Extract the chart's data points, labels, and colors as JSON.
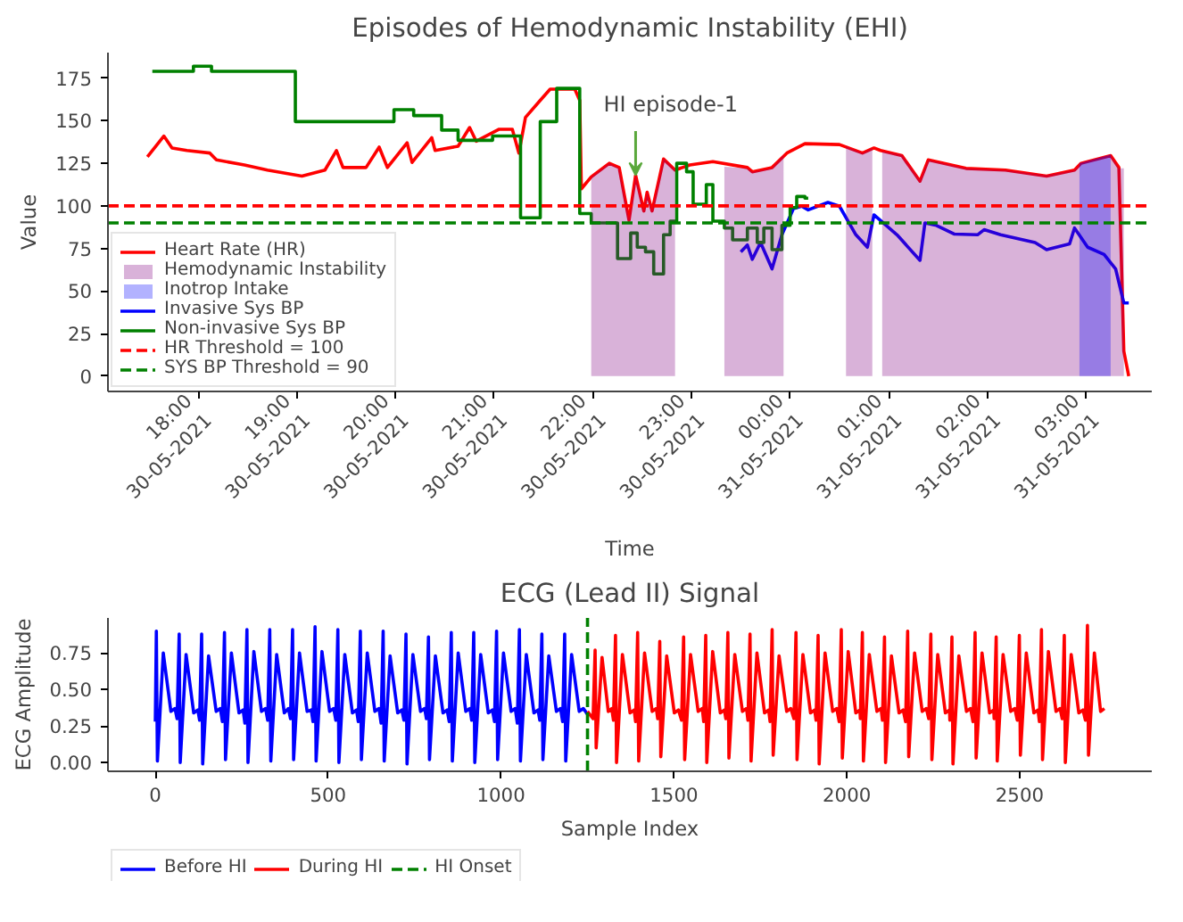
{
  "chart_data": [
    {
      "type": "line",
      "title": "Episodes of Hemodynamic Instability (EHI)",
      "xlabel": "Time",
      "ylabel": "Value",
      "xlim": [
        "2021-05-30T17:05",
        "2021-05-31T03:40"
      ],
      "ylim": [
        -9,
        190
      ],
      "xticks": [
        {
          "value": "2021-05-30T18:00",
          "label": "18:00\n30-05-2021"
        },
        {
          "value": "2021-05-30T19:00",
          "label": "19:00\n30-05-2021"
        },
        {
          "value": "2021-05-30T20:00",
          "label": "20:00\n30-05-2021"
        },
        {
          "value": "2021-05-30T21:00",
          "label": "21:00\n30-05-2021"
        },
        {
          "value": "2021-05-30T22:00",
          "label": "22:00\n30-05-2021"
        },
        {
          "value": "2021-05-30T23:00",
          "label": "23:00\n30-05-2021"
        },
        {
          "value": "2021-05-31T00:00",
          "label": "00:00\n31-05-2021"
        },
        {
          "value": "2021-05-31T01:00",
          "label": "01:00\n31-05-2021"
        },
        {
          "value": "2021-05-31T02:00",
          "label": "02:00\n31-05-2021"
        },
        {
          "value": "2021-05-31T03:00",
          "label": "03:00\n31-05-2021"
        }
      ],
      "yticks": [
        0,
        25,
        50,
        75,
        100,
        125,
        150,
        175
      ],
      "legend": "bottom left",
      "grid": false,
      "series": [
        {
          "name": "Heart Rate (HR)",
          "type": "line",
          "color": "#ff0000",
          "x": [
            "2021-05-30T17:29",
            "2021-05-30T17:39",
            "2021-05-30T17:44",
            "2021-05-30T17:53",
            "2021-05-30T18:07",
            "2021-05-30T18:11",
            "2021-05-30T18:28",
            "2021-05-30T18:42",
            "2021-05-30T19:03",
            "2021-05-30T19:17",
            "2021-05-30T19:24",
            "2021-05-30T19:28",
            "2021-05-30T19:42",
            "2021-05-30T19:50",
            "2021-05-30T19:55",
            "2021-05-30T20:07",
            "2021-05-30T20:10",
            "2021-05-30T20:22",
            "2021-05-30T20:24",
            "2021-05-30T20:38",
            "2021-05-30T20:45",
            "2021-05-30T20:49",
            "2021-05-30T21:03",
            "2021-05-30T21:11",
            "2021-05-30T21:15",
            "2021-05-30T21:19",
            "2021-05-30T21:28",
            "2021-05-30T21:34",
            "2021-05-30T21:49",
            "2021-05-30T21:52",
            "2021-05-30T21:53",
            "2021-05-30T21:59",
            "2021-05-30T22:10",
            "2021-05-30T22:16",
            "2021-05-30T22:22",
            "2021-05-30T22:26",
            "2021-05-30T22:31",
            "2021-05-30T22:33",
            "2021-05-30T22:36",
            "2021-05-30T22:43",
            "2021-05-30T22:50",
            "2021-05-30T22:59",
            "2021-05-30T23:13",
            "2021-05-30T23:34",
            "2021-05-30T23:37",
            "2021-05-30T23:49",
            "2021-05-30T23:58",
            "2021-05-31T00:09",
            "2021-05-31T00:30",
            "2021-05-31T00:44",
            "2021-05-31T00:51",
            "2021-05-31T00:55",
            "2021-05-31T01:08",
            "2021-05-31T01:19",
            "2021-05-31T01:24",
            "2021-05-31T01:47",
            "2021-05-31T02:11",
            "2021-05-31T02:36",
            "2021-05-31T02:53",
            "2021-05-31T02:57",
            "2021-05-31T03:15",
            "2021-05-31T03:20",
            "2021-05-31T03:23",
            "2021-05-31T03:26"
          ],
          "values": [
            128.8,
            141,
            134,
            132.5,
            131,
            127,
            124,
            121,
            117.5,
            121,
            132.5,
            122.5,
            122.5,
            134.5,
            122.5,
            137,
            125.5,
            140,
            132.5,
            135,
            146,
            138,
            145,
            145,
            131,
            152,
            162,
            168.5,
            168.5,
            162,
            110,
            117,
            125,
            122.5,
            91.5,
            118,
            97,
            108,
            97,
            127.5,
            121,
            124,
            126,
            122.5,
            120,
            122.5,
            131,
            136.5,
            136,
            131,
            134,
            132.5,
            129.5,
            114.5,
            127,
            122,
            121,
            117.5,
            121,
            125,
            129.5,
            122.5,
            14.7,
            0
          ]
        },
        {
          "name": "Hemodynamic Instability",
          "type": "area",
          "color": "#800080",
          "x": [
            "2021-05-30T21:59",
            "2021-05-30T22:10",
            "2021-05-30T22:16",
            "2021-05-30T22:22",
            "2021-05-30T22:26",
            "2021-05-30T22:31",
            "2021-05-30T22:33",
            "2021-05-30T22:36",
            "2021-05-30T22:43",
            "2021-05-30T22:50",
            "2021-05-30T23:05",
            "2021-05-30T23:20",
            "2021-05-30T23:34",
            "2021-05-30T23:37",
            "2021-05-30T23:49",
            "2021-05-30T23:56",
            "2021-05-31T00:15",
            "2021-05-31T00:34",
            "2021-05-31T00:44",
            "2021-05-31T00:50",
            "2021-05-31T00:53",
            "2021-05-31T00:56",
            "2021-05-31T01:08",
            "2021-05-31T01:19",
            "2021-05-31T01:24",
            "2021-05-31T01:47",
            "2021-05-31T02:11",
            "2021-05-31T02:36",
            "2021-05-31T02:53",
            "2021-05-31T02:57",
            "2021-05-31T03:15",
            "2021-05-31T03:20",
            "2021-05-31T03:23"
          ],
          "values": [
            117,
            125,
            122,
            92,
            118,
            97,
            108,
            97,
            128,
            121,
            null,
            123,
            122,
            120,
            122,
            130,
            null,
            135,
            131,
            134,
            null,
            132,
            130,
            115,
            127,
            122,
            121,
            118,
            121,
            125,
            130,
            122,
            122
          ]
        },
        {
          "name": "Inotrop Intake",
          "type": "area",
          "color": "#0000ff",
          "x": [
            "2021-05-31T02:56",
            "2021-05-31T03:15"
          ],
          "values": [
            125,
            130
          ]
        },
        {
          "name": "Invasive Sys BP",
          "type": "line",
          "color": "#0000ff",
          "x": [
            "2021-05-30T23:30",
            "2021-05-30T23:34",
            "2021-05-30T23:37",
            "2021-05-30T23:42",
            "2021-05-30T23:49",
            "2021-05-30T23:55",
            "2021-05-31T00:02",
            "2021-05-31T00:07",
            "2021-05-31T00:11",
            "2021-05-31T00:23",
            "2021-05-31T00:30",
            "2021-05-31T00:40",
            "2021-05-31T00:47",
            "2021-05-31T00:51",
            "2021-05-31T01:05",
            "2021-05-31T01:19",
            "2021-05-31T01:22",
            "2021-05-31T01:29",
            "2021-05-31T01:40",
            "2021-05-31T01:54",
            "2021-05-31T01:58",
            "2021-05-31T02:08",
            "2021-05-31T02:29",
            "2021-05-31T02:36",
            "2021-05-31T02:50",
            "2021-05-31T02:53",
            "2021-05-31T03:01",
            "2021-05-31T03:11",
            "2021-05-31T03:18",
            "2021-05-31T03:23",
            "2021-05-31T03:26"
          ],
          "values": [
            73,
            77,
            68.6,
            78.5,
            63,
            83,
            98.4,
            99.8,
            97.6,
            102,
            99.8,
            83,
            75.7,
            94.7,
            83,
            68,
            90,
            88.5,
            83.4,
            83,
            86,
            83,
            78.5,
            74.3,
            77.7,
            87,
            75.7,
            71.5,
            63,
            43,
            43
          ]
        },
        {
          "name": "Non-invasive Sys BP",
          "type": "step",
          "color": "#008000",
          "x": [
            "2021-05-30T17:32",
            "2021-05-30T17:57",
            "2021-05-30T18:08",
            "2021-05-30T18:59",
            "2021-05-30T19:59",
            "2021-05-30T20:11",
            "2021-05-30T20:28",
            "2021-05-30T20:38",
            "2021-05-30T20:59",
            "2021-05-30T21:16",
            "2021-05-30T21:28",
            "2021-05-30T21:38",
            "2021-05-30T21:52",
            "2021-05-30T21:59",
            "2021-05-30T22:15",
            "2021-05-30T22:23",
            "2021-05-30T22:27",
            "2021-05-30T22:32",
            "2021-05-30T22:37",
            "2021-05-30T22:43",
            "2021-05-30T22:47",
            "2021-05-30T22:51",
            "2021-05-30T22:57",
            "2021-05-30T23:01",
            "2021-05-30T23:09",
            "2021-05-30T23:13",
            "2021-05-30T23:20",
            "2021-05-30T23:25",
            "2021-05-30T23:34",
            "2021-05-30T23:40",
            "2021-05-30T23:44",
            "2021-05-30T23:49",
            "2021-05-30T23:55",
            "2021-05-31T00:00",
            "2021-05-31T00:04",
            "2021-05-31T00:09",
            "2021-05-31T00:11"
          ],
          "values": [
            179,
            182,
            179,
            149.5,
            156.5,
            153,
            144.5,
            138.5,
            141,
            93,
            149.5,
            169,
            95.5,
            90,
            69,
            84,
            75.7,
            73,
            60,
            83,
            91,
            125,
            120,
            101,
            112.5,
            91,
            87,
            80,
            87,
            78.5,
            87,
            74.3,
            88.5,
            99,
            105.5,
            104.5,
            104.5
          ]
        }
      ],
      "ref_lines": [
        {
          "axis": "y",
          "value": 100,
          "label": "HR Threshold = 100",
          "color": "#ff0000",
          "line_style": "dashed"
        },
        {
          "axis": "y",
          "value": 90,
          "label": "SYS BP Threshold = 90",
          "color": "#008000",
          "line_style": "dashed"
        }
      ],
      "annotations": [
        {
          "text": "HI episode-1",
          "x": "2021-05-30T22:26",
          "y": 118
        }
      ]
    },
    {
      "type": "line",
      "title": "ECG (Lead II) Signal",
      "xlabel": "Sample Index",
      "ylabel": "ECG Amplitude",
      "xlim": [
        -137,
        2882
      ],
      "ylim": [
        -0.06,
        0.99
      ],
      "xticks": [
        0,
        500,
        1000,
        1500,
        2000,
        2500
      ],
      "yticks": [
        {
          "value": 0,
          "label": "0.00"
        },
        {
          "value": 0.25,
          "label": "0.25"
        },
        {
          "value": 0.5,
          "label": "0.50"
        },
        {
          "value": 0.75,
          "label": "0.75"
        }
      ],
      "legend": "bottom",
      "grid": false,
      "series": [
        {
          "name": "Before HI",
          "color": "#0000ff",
          "x": [
            0,
            3,
            6,
            23,
            45,
            57,
            63,
            69,
            72,
            89,
            111,
            123,
            128,
            134,
            137,
            154,
            176,
            188,
            194,
            200,
            203,
            220,
            242,
            254,
            259,
            265,
            268,
            285,
            307,
            319,
            325,
            331,
            334,
            351,
            373,
            385,
            391,
            397,
            400,
            417,
            439,
            451,
            456,
            462,
            465,
            482,
            504,
            516,
            522,
            528,
            531,
            548,
            570,
            582,
            587,
            593,
            596,
            613,
            635,
            647,
            653,
            659,
            662,
            679,
            701,
            713,
            719,
            725,
            728,
            745,
            767,
            779,
            784,
            790,
            793,
            810,
            832,
            844,
            850,
            856,
            859,
            876,
            898,
            910,
            915,
            921,
            924,
            941,
            963,
            975,
            981,
            987,
            990,
            1007,
            1029,
            1041,
            1047,
            1053,
            1056,
            1073,
            1095,
            1107,
            1112,
            1118,
            1121,
            1138,
            1160,
            1172,
            1178,
            1184,
            1187,
            1204,
            1226,
            1238,
            1250
          ],
          "values": [
            0.28,
            0.9,
            0.01,
            0.75,
            0.35,
            0.37,
            0.3,
            0.88,
            0.0,
            0.74,
            0.34,
            0.36,
            0.29,
            0.88,
            -0.01,
            0.73,
            0.35,
            0.37,
            0.28,
            0.89,
            0.02,
            0.75,
            0.34,
            0.36,
            0.27,
            0.91,
            0.0,
            0.76,
            0.35,
            0.37,
            0.29,
            0.91,
            0.01,
            0.74,
            0.34,
            0.37,
            0.3,
            0.91,
            0.02,
            0.75,
            0.35,
            0.36,
            0.28,
            0.93,
            0.01,
            0.76,
            0.35,
            0.37,
            0.29,
            0.91,
            0.0,
            0.74,
            0.34,
            0.36,
            0.28,
            0.9,
            0.02,
            0.75,
            0.35,
            0.37,
            0.27,
            0.9,
            0.01,
            0.73,
            0.34,
            0.36,
            0.29,
            0.88,
            -0.01,
            0.74,
            0.35,
            0.37,
            0.3,
            0.86,
            0.02,
            0.73,
            0.34,
            0.36,
            0.28,
            0.89,
            0.01,
            0.75,
            0.35,
            0.37,
            0.29,
            0.89,
            0.0,
            0.74,
            0.34,
            0.36,
            0.28,
            0.9,
            0.02,
            0.75,
            0.35,
            0.37,
            0.27,
            0.91,
            0.01,
            0.74,
            0.34,
            0.36,
            0.29,
            0.88,
            0.02,
            0.73,
            0.35,
            0.37,
            0.28,
            0.88,
            0.01,
            0.74,
            0.35,
            0.37,
            0.33
          ]
        },
        {
          "name": "During HI",
          "color": "#ff0000",
          "x": [
            1250,
            1266,
            1272,
            1275,
            1292,
            1310,
            1320,
            1325,
            1331,
            1334,
            1351,
            1373,
            1385,
            1389,
            1395,
            1398,
            1415,
            1437,
            1449,
            1453,
            1459,
            1462,
            1479,
            1501,
            1513,
            1522,
            1528,
            1531,
            1548,
            1570,
            1582,
            1586,
            1592,
            1595,
            1612,
            1634,
            1646,
            1650,
            1656,
            1659,
            1676,
            1698,
            1710,
            1714,
            1720,
            1723,
            1740,
            1762,
            1774,
            1778,
            1784,
            1787,
            1804,
            1826,
            1838,
            1847,
            1853,
            1856,
            1873,
            1895,
            1907,
            1911,
            1917,
            1920,
            1937,
            1959,
            1971,
            1978,
            1984,
            1987,
            2004,
            2026,
            2038,
            2039,
            2045,
            2048,
            2065,
            2087,
            2099,
            2103,
            2109,
            2112,
            2129,
            2151,
            2163,
            2170,
            2176,
            2179,
            2196,
            2218,
            2230,
            2237,
            2243,
            2246,
            2263,
            2285,
            2297,
            2298,
            2304,
            2307,
            2324,
            2346,
            2358,
            2365,
            2371,
            2374,
            2391,
            2413,
            2425,
            2426,
            2432,
            2435,
            2452,
            2474,
            2486,
            2493,
            2499,
            2502,
            2519,
            2541,
            2553,
            2557,
            2563,
            2566,
            2583,
            2605,
            2617,
            2623,
            2629,
            2632,
            2649,
            2671,
            2683,
            2690,
            2696,
            2699,
            2716,
            2734,
            2745
          ],
          "values": [
            0.35,
            0.3,
            0.77,
            0.1,
            0.72,
            0.35,
            0.37,
            0.29,
            0.87,
            0.0,
            0.74,
            0.34,
            0.36,
            0.28,
            0.89,
            0.01,
            0.75,
            0.35,
            0.37,
            0.3,
            0.83,
            0.04,
            0.73,
            0.34,
            0.36,
            0.29,
            0.86,
            0.02,
            0.74,
            0.35,
            0.37,
            0.28,
            0.87,
            0.0,
            0.76,
            0.34,
            0.36,
            0.3,
            0.89,
            0.03,
            0.74,
            0.35,
            0.37,
            0.29,
            0.88,
            0.01,
            0.75,
            0.34,
            0.36,
            0.28,
            0.91,
            0.05,
            0.73,
            0.35,
            0.37,
            0.3,
            0.89,
            0.02,
            0.74,
            0.34,
            0.36,
            0.29,
            0.87,
            -0.01,
            0.75,
            0.35,
            0.37,
            0.28,
            0.91,
            0.03,
            0.76,
            0.34,
            0.36,
            0.3,
            0.89,
            0.01,
            0.74,
            0.35,
            0.37,
            0.29,
            0.86,
            0.0,
            0.73,
            0.34,
            0.36,
            0.28,
            0.9,
            0.04,
            0.75,
            0.35,
            0.37,
            0.3,
            0.88,
            0.02,
            0.74,
            0.34,
            0.36,
            0.29,
            0.86,
            -0.01,
            0.73,
            0.35,
            0.37,
            0.28,
            0.89,
            0.03,
            0.75,
            0.34,
            0.36,
            0.3,
            0.86,
            0.01,
            0.74,
            0.35,
            0.37,
            0.29,
            0.87,
            0.05,
            0.75,
            0.34,
            0.36,
            0.28,
            0.91,
            0.02,
            0.76,
            0.35,
            0.37,
            0.3,
            0.87,
            0.0,
            0.74,
            0.34,
            0.36,
            0.29,
            0.94,
            0.05,
            0.75,
            0.35,
            0.37
          ]
        }
      ],
      "ref_lines": [
        {
          "axis": "x",
          "value": 1250,
          "label": "HI Onset",
          "color": "#008000",
          "line_style": "dashed"
        }
      ]
    }
  ]
}
